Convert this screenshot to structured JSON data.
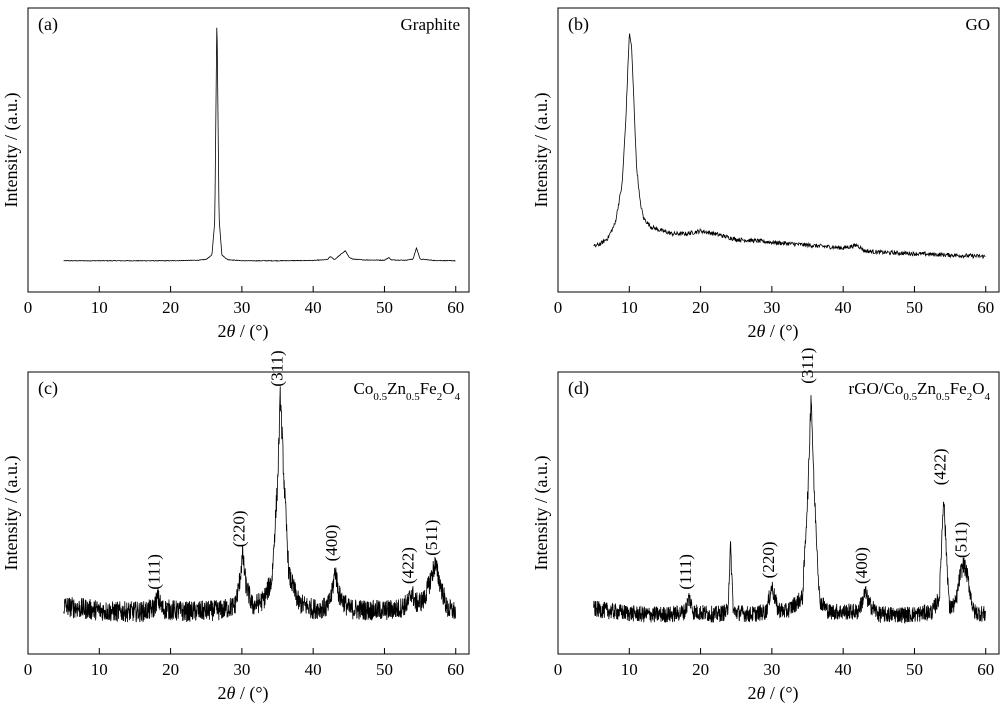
{
  "chart_data": [
    {
      "type": "line",
      "panel": "(a)",
      "sample": "Graphite",
      "sample_sub": [],
      "xlabel_prefix": "2",
      "xlabel_var": "θ",
      "xlabel_suffix": " / (°)",
      "ylabel": "Intensity / (a.u.)",
      "xlim": [
        0,
        62
      ],
      "xticks": [
        0,
        10,
        20,
        30,
        40,
        50,
        60
      ],
      "ylim": [
        0,
        100
      ],
      "grid": false,
      "noise": 0.1,
      "series": [
        {
          "x": [
            5,
            10,
            15,
            20,
            24,
            25,
            25.8,
            26.2,
            26.5,
            26.8,
            27.2,
            28,
            30,
            35,
            40,
            42,
            42.4,
            43,
            43.5,
            44,
            44.5,
            45,
            45.5,
            47,
            50,
            50.6,
            51,
            53,
            54,
            54.5,
            55,
            57,
            60
          ],
          "y": [
            11,
            11,
            11,
            11,
            11.2,
            11.5,
            13,
            25,
            98,
            26,
            13,
            11.4,
            11,
            11,
            11.1,
            11.4,
            12.5,
            11.4,
            12.5,
            13.5,
            14.5,
            12.4,
            11.6,
            11.3,
            11.2,
            12.1,
            11.3,
            11.2,
            11.6,
            15.5,
            11.6,
            11.1,
            11
          ]
        }
      ],
      "peak_labels": []
    },
    {
      "type": "line",
      "panel": "(b)",
      "sample": "GO",
      "sample_sub": [],
      "xlabel_prefix": "2",
      "xlabel_var": "θ",
      "xlabel_suffix": " / (°)",
      "ylabel": "Intensity / (a.u.)",
      "xlim": [
        0,
        62
      ],
      "xticks": [
        0,
        10,
        20,
        30,
        40,
        50,
        60
      ],
      "ylim": [
        0,
        100
      ],
      "grid": false,
      "noise": 0.7,
      "series": [
        {
          "x": [
            5,
            6,
            7,
            8,
            9,
            9.5,
            10,
            10.3,
            10.6,
            11,
            11.5,
            12,
            13,
            14,
            16,
            18,
            20,
            22,
            25,
            28,
            30,
            35,
            40,
            42,
            43,
            45,
            50,
            55,
            60
          ],
          "y": [
            16,
            17,
            19,
            24,
            38,
            60,
            91,
            87,
            70,
            45,
            32,
            26,
            23,
            22,
            20.5,
            20.5,
            21.5,
            20.5,
            18.5,
            18,
            17.5,
            16.5,
            15.5,
            16.5,
            14.5,
            14,
            13.5,
            13,
            12.5
          ]
        }
      ],
      "peak_labels": []
    },
    {
      "type": "line",
      "panel": "(c)",
      "sample": "Co0.5Zn0.5Fe2O4",
      "sample_sub": [
        [
          "Co",
          ""
        ],
        [
          "0.5",
          "sub"
        ],
        [
          "Zn",
          ""
        ],
        [
          "0.5",
          "sub"
        ],
        [
          "Fe",
          ""
        ],
        [
          "2",
          "sub"
        ],
        [
          "O",
          ""
        ],
        [
          "4",
          "sub"
        ]
      ],
      "xlabel_prefix": "2",
      "xlabel_var": "θ",
      "xlabel_suffix": " / (°)",
      "ylabel": "Intensity / (a.u.)",
      "xlim": [
        0,
        62
      ],
      "xticks": [
        0,
        10,
        20,
        30,
        40,
        50,
        60
      ],
      "ylim": [
        0,
        100
      ],
      "grid": false,
      "noise": 3.5,
      "series": [
        {
          "x": [
            5,
            8,
            12,
            16,
            17.6,
            18.2,
            18.8,
            22,
            27,
            29,
            29.6,
            30.1,
            30.6,
            31.5,
            33,
            34.2,
            35.0,
            35.4,
            35.9,
            36.6,
            38,
            40,
            42,
            42.6,
            43.1,
            43.6,
            45,
            48,
            50,
            52,
            53.3,
            53.8,
            54.4,
            55.5,
            56.3,
            57.1,
            57.8,
            58.8,
            60
          ],
          "y": [
            17,
            16,
            15,
            15,
            16,
            20,
            16,
            15,
            15.5,
            17,
            24,
            35,
            24,
            17,
            19,
            26,
            60,
            92,
            62,
            28,
            18,
            16,
            16.5,
            21,
            30,
            21,
            16,
            15.5,
            15.5,
            16,
            18,
            22,
            18,
            19,
            25,
            32,
            25,
            16,
            15
          ]
        }
      ],
      "peak_labels": [
        {
          "x": 18.2,
          "text": "(111)"
        },
        {
          "x": 30.1,
          "text": "(220)"
        },
        {
          "x": 35.4,
          "text": "(311)"
        },
        {
          "x": 43.1,
          "text": "(400)"
        },
        {
          "x": 53.8,
          "text": "(422)"
        },
        {
          "x": 57.1,
          "text": "(511)"
        }
      ]
    },
    {
      "type": "line",
      "panel": "(d)",
      "sample": "rGO/Co0.5Zn0.5Fe2O4",
      "sample_sub": [
        [
          "rGO/Co",
          ""
        ],
        [
          "0.5",
          "sub"
        ],
        [
          "Zn",
          ""
        ],
        [
          "0.5",
          "sub"
        ],
        [
          "Fe",
          ""
        ],
        [
          "2",
          "sub"
        ],
        [
          "O",
          ""
        ],
        [
          "4",
          "sub"
        ]
      ],
      "xlabel_prefix": "2",
      "xlabel_var": "θ",
      "xlabel_suffix": " / (°)",
      "ylabel": "Intensity / (a.u.)",
      "xlim": [
        0,
        62
      ],
      "xticks": [
        0,
        10,
        20,
        30,
        40,
        50,
        60
      ],
      "ylim": [
        0,
        100
      ],
      "grid": false,
      "noise": 2.8,
      "series": [
        {
          "x": [
            5,
            8,
            12,
            16,
            17.8,
            18.4,
            19,
            22,
            23.8,
            24.2,
            24.6,
            27,
            29.2,
            30.0,
            30.8,
            32,
            34.3,
            35.1,
            35.5,
            35.9,
            36.7,
            38,
            42,
            42.6,
            43.1,
            43.6,
            45,
            50,
            52.5,
            53.5,
            53.9,
            54.1,
            54.3,
            54.9,
            55.8,
            56.4,
            56.9,
            57.4,
            58.3,
            60
          ],
          "y": [
            16,
            15,
            14,
            14,
            15,
            20,
            15,
            14,
            15,
            38,
            15,
            14,
            15,
            24,
            16,
            15,
            20,
            60,
            93,
            60,
            19,
            15,
            15,
            18,
            22,
            18,
            14,
            14,
            15,
            20,
            45,
            57,
            45,
            16,
            18,
            28,
            32,
            28,
            15,
            14
          ]
        }
      ],
      "peak_labels": [
        {
          "x": 18.4,
          "text": "(111)"
        },
        {
          "x": 30.0,
          "text": "(220)"
        },
        {
          "x": 35.5,
          "text": "(311)"
        },
        {
          "x": 43.1,
          "text": "(400)"
        },
        {
          "x": 54.1,
          "text": "(422)"
        },
        {
          "x": 57.0,
          "text": "(511)"
        }
      ]
    }
  ]
}
